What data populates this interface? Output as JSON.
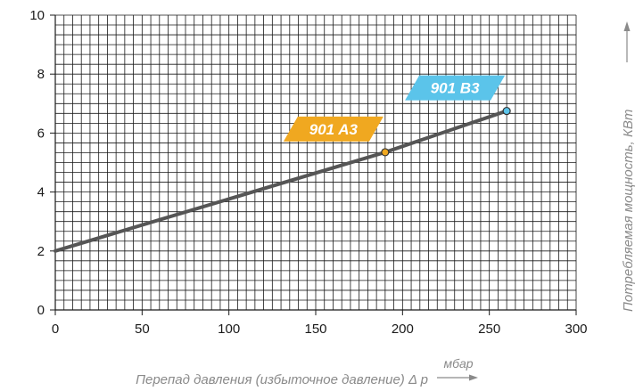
{
  "chart_data": {
    "type": "line",
    "title": "",
    "xlabel": "Перепад давления (избыточное давление) Δ p",
    "xunit": "мбар",
    "ylabel": "Потребляемая мощность, КВт",
    "xlim": [
      0,
      300
    ],
    "ylim": [
      0,
      10
    ],
    "x_ticks": [
      0,
      50,
      100,
      150,
      200,
      250,
      300
    ],
    "y_ticks": [
      0,
      2,
      4,
      6,
      8,
      10
    ],
    "grid": true,
    "series": [
      {
        "x": [
          0,
          190,
          260
        ],
        "y": [
          2.0,
          5.35,
          6.75
        ],
        "color": "#555555"
      }
    ],
    "annotations": [
      {
        "text": "901 A3",
        "x": 190,
        "y": 5.35,
        "color": "#f0a820"
      },
      {
        "text": "901 B3",
        "x": 260,
        "y": 6.75,
        "color": "#5bc4ea"
      }
    ]
  }
}
